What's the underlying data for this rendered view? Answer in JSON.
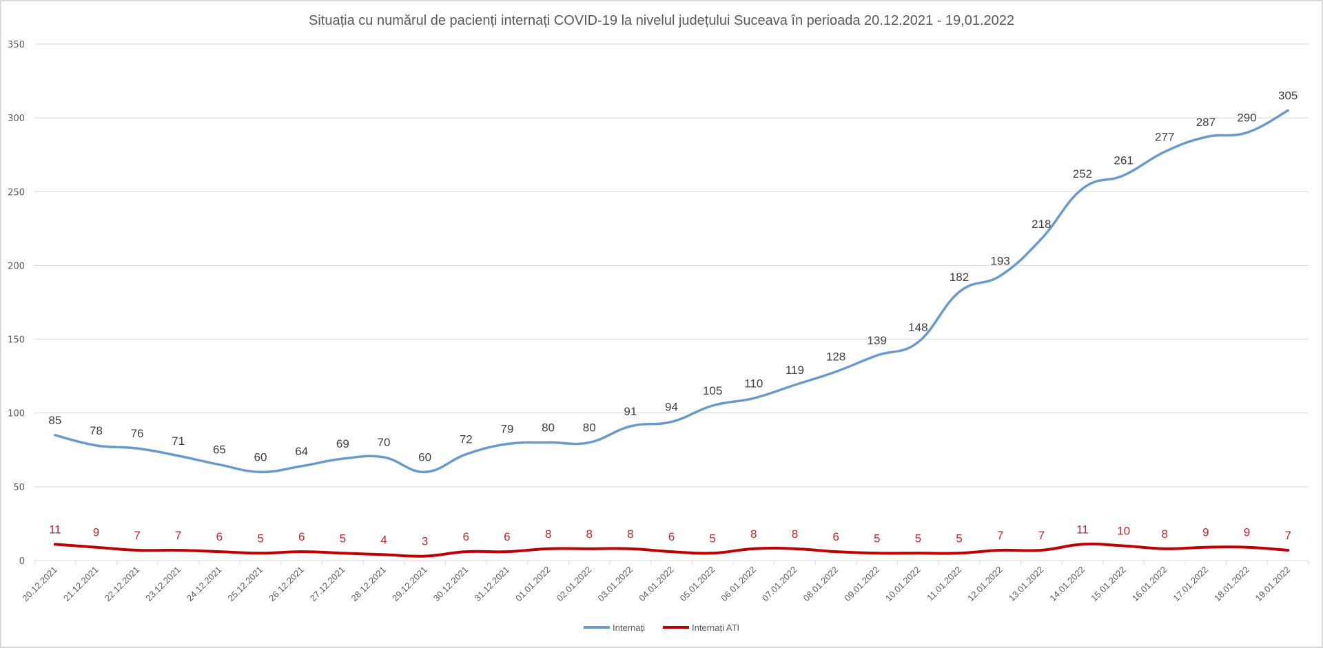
{
  "chart_data": {
    "type": "line",
    "title": "Situația cu numărul de pacienți internați COVID-19 la nivelul județului Suceava în perioada 20.12.2021 - 19,01.2022",
    "xlabel": "",
    "ylabel": "",
    "ylim": [
      0,
      350
    ],
    "yticks": [
      "0",
      "50",
      "100",
      "150",
      "200",
      "250",
      "300",
      "350"
    ],
    "grid": true,
    "legend_position": "bottom",
    "categories": [
      "20.12.2021",
      "21.12.2021",
      "22.12.2021",
      "23.12.2021",
      "24.12.2021",
      "25.12.2021",
      "26.12.2021",
      "27.12.2021",
      "28.12.2021",
      "29.12.2021",
      "30.12.2021",
      "31.12.2021",
      "01.01.2022",
      "02.01.2022",
      "03.01.2022",
      "04.01.2022",
      "05.01.2022",
      "06.01.2022",
      "07.01.2022",
      "08.01.2022",
      "09.01.2022",
      "10.01.2022",
      "11.01.2022",
      "12.01.2022",
      "13.01.2022",
      "14.01.2022",
      "15.01.2022",
      "16.01.2022",
      "17.01.2022",
      "18.01.2022",
      "19.01.2022"
    ],
    "series": [
      {
        "name": "Internați",
        "color": "#6a9acb",
        "label_color": "#404040",
        "values": [
          85,
          78,
          76,
          71,
          65,
          60,
          64,
          69,
          70,
          60,
          72,
          79,
          80,
          80,
          91,
          94,
          105,
          110,
          119,
          128,
          139,
          148,
          182,
          193,
          218,
          252,
          261,
          277,
          287,
          290,
          305
        ]
      },
      {
        "name": "Internați ATI",
        "color": "#c00000",
        "label_color": "#c0272d",
        "values": [
          11,
          9,
          7,
          7,
          6,
          5,
          6,
          5,
          4,
          3,
          6,
          6,
          8,
          8,
          8,
          6,
          5,
          8,
          8,
          6,
          5,
          5,
          5,
          7,
          7,
          11,
          10,
          8,
          9,
          9,
          7
        ]
      }
    ]
  }
}
